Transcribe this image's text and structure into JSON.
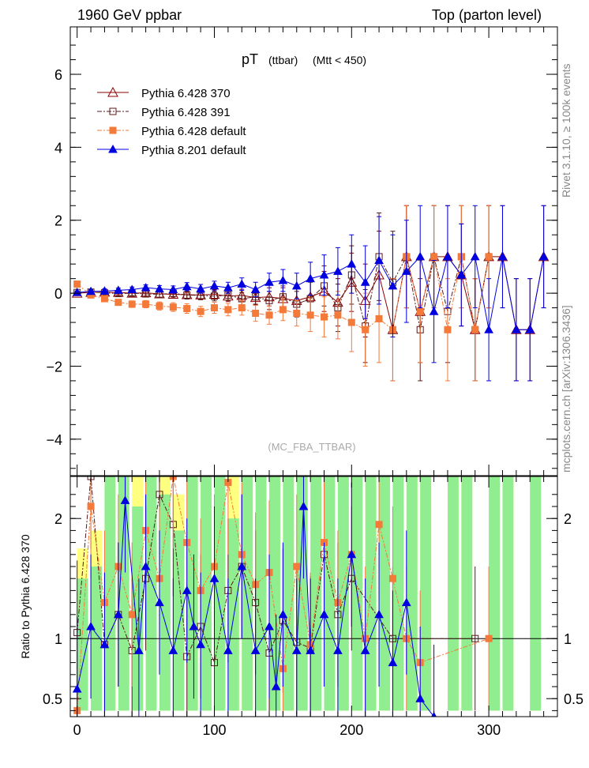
{
  "header": {
    "left": "1960 GeV ppbar",
    "right": "Top (parton level)"
  },
  "side_labels": {
    "rivet": "Rivet 3.1.10, ≥ 100k events",
    "mcplots": "mcplots.cern.ch [arXiv:1306.3436]"
  },
  "chart_data": [
    {
      "type": "line",
      "panel": "main",
      "title_main": "pT",
      "title_sub1": "(ttbar)",
      "title_sub2": "(Mtt < 450)",
      "watermark": "(MC_FBA_TTBAR)",
      "xlim": [
        -5,
        350
      ],
      "ylim": [
        -5,
        7.3
      ],
      "yticks": [
        -4,
        -2,
        0,
        2,
        4,
        6
      ],
      "ytick_labels": [
        "−4",
        "−2",
        "0",
        "2",
        "4",
        "6"
      ],
      "legend_position": "top-left",
      "series": [
        {
          "name": "Pythia 6.428 370",
          "color": "#8b0000",
          "marker": "triangle-open",
          "dash": "",
          "x": [
            0,
            10,
            20,
            30,
            40,
            50,
            60,
            70,
            80,
            90,
            100,
            110,
            120,
            130,
            140,
            150,
            160,
            170,
            180,
            190,
            200,
            210,
            220,
            230,
            240,
            250,
            260,
            270,
            280,
            290,
            300,
            310,
            320,
            330,
            340
          ],
          "y": [
            0.0,
            0.02,
            0.03,
            0.02,
            0.0,
            0.01,
            -0.02,
            -0.03,
            -0.04,
            -0.05,
            -0.03,
            -0.08,
            -0.06,
            -0.12,
            -0.1,
            -0.15,
            -0.2,
            -0.1,
            0.05,
            -0.25,
            0.3,
            -0.2,
            0.5,
            -1.0,
            1.0,
            -0.5,
            1.0,
            1.0,
            0.5,
            -1.0,
            1.0,
            1.0,
            -1.0,
            -1.0,
            1.0
          ],
          "err": [
            0.04,
            0.05,
            0.06,
            0.06,
            0.07,
            0.08,
            0.09,
            0.1,
            0.11,
            0.12,
            0.13,
            0.15,
            0.17,
            0.2,
            0.25,
            0.3,
            0.35,
            0.45,
            0.55,
            0.65,
            0.8,
            1.0,
            1.2,
            1.4,
            1.4,
            1.4,
            1.4,
            1.4,
            1.4,
            1.4,
            1.4,
            1.4,
            1.4,
            1.4,
            1.4
          ]
        },
        {
          "name": "Pythia 6.428 391",
          "color": "#5a1a1a",
          "marker": "square-open",
          "dash": "6,2,2,2",
          "x": [
            0,
            10,
            20,
            30,
            40,
            50,
            60,
            70,
            80,
            90,
            100,
            110,
            120,
            130,
            140,
            150,
            160,
            170,
            180,
            190,
            200,
            210,
            220,
            230,
            240,
            250,
            260,
            270,
            280,
            290,
            300
          ],
          "y": [
            0.02,
            0.03,
            0.01,
            -0.01,
            0.0,
            -0.02,
            -0.03,
            0.0,
            -0.05,
            -0.06,
            -0.08,
            -0.05,
            -0.15,
            -0.1,
            -0.2,
            -0.1,
            -0.3,
            -0.15,
            0.2,
            -0.4,
            0.5,
            -0.9,
            1.0,
            0.3,
            1.0,
            -1.0,
            1.0,
            -0.5,
            1.0,
            -1.0,
            1.0
          ],
          "err": [
            0.04,
            0.05,
            0.06,
            0.06,
            0.07,
            0.08,
            0.09,
            0.1,
            0.11,
            0.12,
            0.13,
            0.15,
            0.17,
            0.2,
            0.25,
            0.3,
            0.35,
            0.45,
            0.55,
            0.65,
            0.8,
            1.0,
            1.2,
            1.4,
            1.4,
            1.4,
            1.4,
            1.4,
            1.4,
            1.4,
            1.4
          ]
        },
        {
          "name": "Pythia 6.428 default",
          "color": "#f47a3a",
          "marker": "square-filled",
          "dash": "6,2,2,2",
          "x": [
            0,
            10,
            20,
            30,
            40,
            50,
            60,
            70,
            80,
            90,
            100,
            110,
            120,
            130,
            140,
            150,
            160,
            170,
            180,
            190,
            200,
            210,
            220,
            230,
            240,
            250,
            260,
            270,
            280,
            290,
            300
          ],
          "y": [
            0.25,
            -0.05,
            -0.15,
            -0.25,
            -0.3,
            -0.3,
            -0.35,
            -0.38,
            -0.42,
            -0.5,
            -0.4,
            -0.45,
            -0.4,
            -0.55,
            -0.6,
            -0.45,
            -0.55,
            -0.6,
            -0.65,
            -0.6,
            -0.8,
            -1.0,
            -0.7,
            -1.0,
            1.0,
            -0.5,
            1.0,
            -1.0,
            1.0,
            -1.0,
            1.0
          ],
          "err": [
            0.05,
            0.06,
            0.07,
            0.08,
            0.09,
            0.1,
            0.11,
            0.12,
            0.13,
            0.14,
            0.15,
            0.17,
            0.2,
            0.22,
            0.25,
            0.3,
            0.35,
            0.45,
            0.55,
            0.65,
            0.8,
            1.0,
            1.2,
            1.4,
            1.4,
            1.4,
            1.4,
            1.4,
            1.4,
            1.4,
            1.4
          ]
        },
        {
          "name": "Pythia 8.201 default",
          "color": "#0000e0",
          "marker": "triangle-filled",
          "dash": "",
          "x": [
            0,
            10,
            20,
            30,
            40,
            50,
            60,
            70,
            80,
            90,
            100,
            110,
            120,
            130,
            140,
            150,
            160,
            170,
            180,
            190,
            200,
            210,
            220,
            230,
            240,
            250,
            260,
            270,
            280,
            290,
            300,
            310,
            320,
            330,
            340
          ],
          "y": [
            0.02,
            0.05,
            0.06,
            0.08,
            0.1,
            0.15,
            0.12,
            0.1,
            0.18,
            0.12,
            0.2,
            0.15,
            0.25,
            0.1,
            0.3,
            0.35,
            0.2,
            0.4,
            0.5,
            0.6,
            0.8,
            0.3,
            0.9,
            0.2,
            0.6,
            1.0,
            -0.5,
            1.0,
            0.5,
            1.0,
            -1.0,
            1.0,
            -1.0,
            -1.0,
            1.0
          ],
          "err": [
            0.04,
            0.05,
            0.06,
            0.06,
            0.07,
            0.08,
            0.09,
            0.1,
            0.11,
            0.12,
            0.13,
            0.15,
            0.17,
            0.2,
            0.25,
            0.3,
            0.35,
            0.45,
            0.55,
            0.65,
            0.8,
            1.0,
            1.2,
            1.4,
            1.4,
            1.4,
            1.4,
            1.4,
            1.4,
            1.4,
            1.4,
            1.4,
            1.4,
            1.4,
            1.4
          ]
        }
      ]
    },
    {
      "type": "line",
      "panel": "ratio",
      "ylabel": "Ratio to Pythia 6.428 370",
      "xlim": [
        -5,
        350
      ],
      "ylim": [
        0.35,
        2.35
      ],
      "yticks": [
        0.5,
        1,
        2
      ],
      "ytick_labels": [
        "0.5",
        "1",
        "2"
      ],
      "xticks": [
        0,
        100,
        200,
        300
      ],
      "xtick_labels": [
        "0",
        "100",
        "200",
        "300"
      ],
      "bands": {
        "green_color": "#90ee90",
        "yellow_color": "#ffff80",
        "x": [
          0,
          10,
          20,
          30,
          40,
          50,
          60,
          70,
          80,
          90,
          100,
          110,
          120,
          130,
          140,
          150,
          160,
          170,
          180,
          190,
          200,
          210,
          220,
          230,
          240,
          250,
          260,
          270,
          280,
          290,
          300,
          310,
          320,
          330,
          340
        ],
        "green_lo": [
          0.4,
          0.4,
          0.4,
          0.4,
          0.4,
          0.4,
          0.4,
          0.4,
          0.4,
          0.4,
          0.4,
          0.4,
          0.4,
          0.4,
          0.4,
          0.4,
          0.4,
          0.4,
          0.4,
          0.4,
          0.4,
          0.4,
          0.4,
          0.4,
          0.4,
          0.4,
          0.4,
          0.4,
          0.4,
          0.4,
          0.4,
          0.4,
          0.4,
          0.4,
          0.4
        ],
        "green_hi": [
          1.5,
          1.6,
          2.35,
          2.35,
          2.1,
          2.35,
          2.2,
          1.9,
          2.35,
          2.35,
          2.35,
          2.0,
          2.35,
          2.35,
          2.35,
          2.35,
          2.35,
          2.35,
          2.35,
          2.35,
          2.35,
          2.35,
          2.35,
          2.35,
          2.35,
          2.35,
          0.0,
          2.35,
          2.35,
          0.0,
          2.35,
          2.35,
          0.0,
          2.35,
          0.0
        ],
        "yellow_hi": [
          1.75,
          1.9,
          2.35,
          2.35,
          2.35,
          2.35,
          2.35,
          2.2,
          2.35,
          2.35,
          2.35,
          2.35,
          2.35,
          2.35,
          2.35,
          2.35,
          2.35,
          2.35,
          2.35,
          2.35,
          2.35,
          2.35,
          2.35,
          2.35,
          2.35,
          2.35,
          0.0,
          2.35,
          2.35,
          0.0,
          2.35,
          2.35,
          0.0,
          2.35,
          0.0
        ]
      },
      "series": [
        {
          "name": "Pythia 6.428 391",
          "x": [
            0,
            10,
            20,
            30,
            40,
            50,
            60,
            70,
            80,
            90,
            100,
            110,
            120,
            130,
            140,
            150,
            160,
            170,
            180,
            190,
            200,
            230,
            290
          ],
          "y": [
            1.05,
            2.35,
            0.95,
            1.2,
            0.9,
            1.5,
            2.2,
            1.95,
            0.85,
            1.1,
            0.8,
            1.4,
            1.6,
            1.3,
            0.88,
            1.15,
            0.97,
            0.92,
            1.7,
            1.2,
            1.5,
            1.0,
            1.0
          ]
        },
        {
          "name": "Pythia 6.428 default",
          "x": [
            0,
            10,
            20,
            30,
            40,
            50,
            60,
            70,
            80,
            90,
            100,
            110,
            120,
            130,
            140,
            150,
            160,
            170,
            180,
            190,
            200,
            210,
            220,
            230,
            240,
            250,
            300
          ],
          "y": [
            0.4,
            2.1,
            1.3,
            1.6,
            1.2,
            1.9,
            1.5,
            2.35,
            1.8,
            1.4,
            1.6,
            2.3,
            1.7,
            1.45,
            1.55,
            0.75,
            1.6,
            0.95,
            1.8,
            1.3,
            1.7,
            1.0,
            1.95,
            1.5,
            1.0,
            0.8,
            1.0
          ]
        },
        {
          "name": "Pythia 8.201 default",
          "x": [
            0,
            10,
            20,
            30,
            35,
            45,
            50,
            60,
            70,
            80,
            85,
            90,
            100,
            110,
            120,
            130,
            140,
            145,
            150,
            160,
            165,
            170,
            180,
            190,
            200,
            210,
            220,
            230,
            240,
            250,
            260
          ],
          "y": [
            0.58,
            1.1,
            0.95,
            1.2,
            2.15,
            0.9,
            1.6,
            1.3,
            0.9,
            1.4,
            1.1,
            0.95,
            1.5,
            0.9,
            1.6,
            0.9,
            1.1,
            0.6,
            1.2,
            0.9,
            2.1,
            0.9,
            1.2,
            0.9,
            1.7,
            0.9,
            1.2,
            0.8,
            1.3,
            0.5,
            0.35
          ]
        }
      ]
    }
  ]
}
